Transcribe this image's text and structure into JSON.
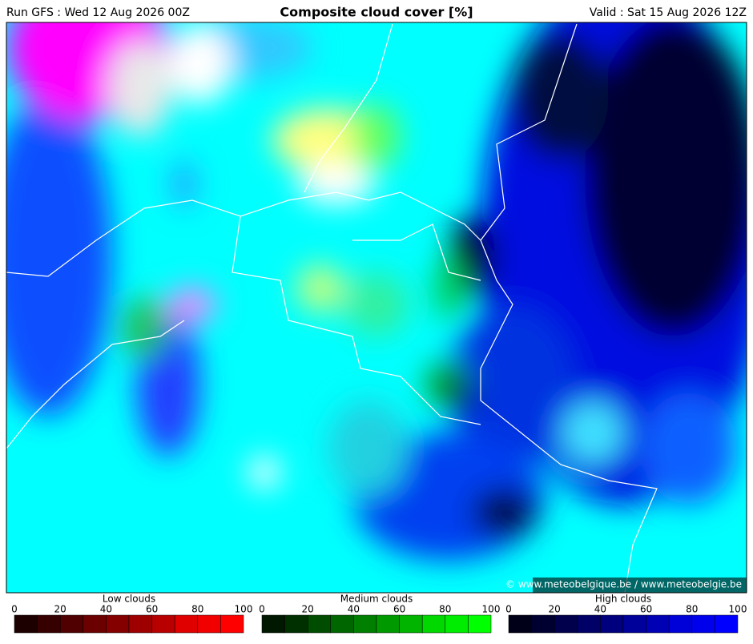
{
  "header": {
    "run": "Run GFS : Wed 12 Aug 2026 00Z",
    "title": "Composite cloud cover [%]",
    "valid": "Valid : Sat 15 Aug 2026 12Z"
  },
  "copyright": "© www.meteobelgique.be / www.meteobelgie.be",
  "legends": [
    {
      "title": "Low clouds",
      "ticks": [
        0,
        20,
        40,
        60,
        80,
        100
      ],
      "colors": [
        "#1c0000",
        "#360000",
        "#500000",
        "#6a0000",
        "#840000",
        "#9e0000",
        "#b80000",
        "#e00000",
        "#f20000",
        "#ff0000"
      ]
    },
    {
      "title": "Medium clouds",
      "ticks": [
        0,
        20,
        40,
        60,
        80,
        100
      ],
      "colors": [
        "#001800",
        "#003000",
        "#004c00",
        "#006600",
        "#007f00",
        "#009a00",
        "#00b400",
        "#00d800",
        "#00ec00",
        "#00ff00"
      ]
    },
    {
      "title": "High clouds",
      "ticks": [
        0,
        20,
        40,
        60,
        80,
        100
      ],
      "colors": [
        "#000018",
        "#000030",
        "#00004c",
        "#000066",
        "#00007f",
        "#00009a",
        "#0000b4",
        "#0000d8",
        "#0000ec",
        "#0000ff"
      ]
    }
  ]
}
